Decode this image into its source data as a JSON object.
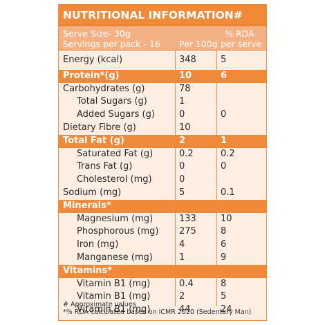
{
  "title": "NUTRITIONAL INFORMATION#",
  "header": {
    "serve_size": "Serve Size- 30g",
    "servings": "Servings per pack - 16",
    "col_per100g": "Per 100g",
    "col_rda_1": "% RDA",
    "col_rda_2": "per serve"
  },
  "rows": [
    {
      "name": "Energy (kcal)",
      "per100g": "348",
      "rda": "5",
      "type": "main"
    },
    {
      "name": "Protein*(g)",
      "per100g": "10",
      "rda": "6",
      "type": "section"
    },
    {
      "name": "Carbohydrates (g)",
      "per100g": "78",
      "rda": "",
      "type": "main"
    },
    {
      "name": "Total Sugars (g)",
      "per100g": "1",
      "rda": "",
      "type": "sub"
    },
    {
      "name": "Added Sugars (g)",
      "per100g": "0",
      "rda": "0",
      "type": "sub"
    },
    {
      "name": "Dietary Fibre (g)",
      "per100g": "10",
      "rda": "",
      "type": "main"
    },
    {
      "name": "Total Fat (g)",
      "per100g": "2",
      "rda": "1",
      "type": "section"
    },
    {
      "name": "Saturated Fat (g)",
      "per100g": "0.2",
      "rda": "0.2",
      "type": "sub"
    },
    {
      "name": "Trans Fat (g)",
      "per100g": "0",
      "rda": "0",
      "type": "sub"
    },
    {
      "name": "Cholesterol (mg)",
      "per100g": "0",
      "rda": "",
      "type": "sub"
    },
    {
      "name": "Sodium (mg)",
      "per100g": "5",
      "rda": "0.1",
      "type": "main"
    },
    {
      "name": "Minerals*",
      "per100g": "",
      "rda": "",
      "type": "section"
    },
    {
      "name": "Magnesium (mg)",
      "per100g": "133",
      "rda": "10",
      "type": "sub"
    },
    {
      "name": "Phosphorous (mg)",
      "per100g": "275",
      "rda": "8",
      "type": "sub"
    },
    {
      "name": "Iron (mg)",
      "per100g": "4",
      "rda": "6",
      "type": "sub"
    },
    {
      "name": "Manganese (mg)",
      "per100g": "1",
      "rda": "9",
      "type": "sub"
    },
    {
      "name": "Vitamins*",
      "per100g": "",
      "rda": "",
      "type": "section"
    },
    {
      "name": "Vitamin B1 (mg)",
      "per100g": "0.4",
      "rda": "8",
      "type": "sub"
    },
    {
      "name": "Vitamin B1 (mg)",
      "per100g": "2",
      "rda": "5",
      "type": "sub"
    },
    {
      "name": "Vitamin B1 (mg)",
      "per100g": "44",
      "rda": "24",
      "type": "sub"
    }
  ],
  "footer": {
    "line1": "# Approximate values",
    "line2": "*% RDA calculated based on ICMR 2020 (Sedentary Man)"
  },
  "colors": {
    "accent": "#ef8a3a",
    "header_band": "#f4b184",
    "background": "#fdeee3"
  }
}
